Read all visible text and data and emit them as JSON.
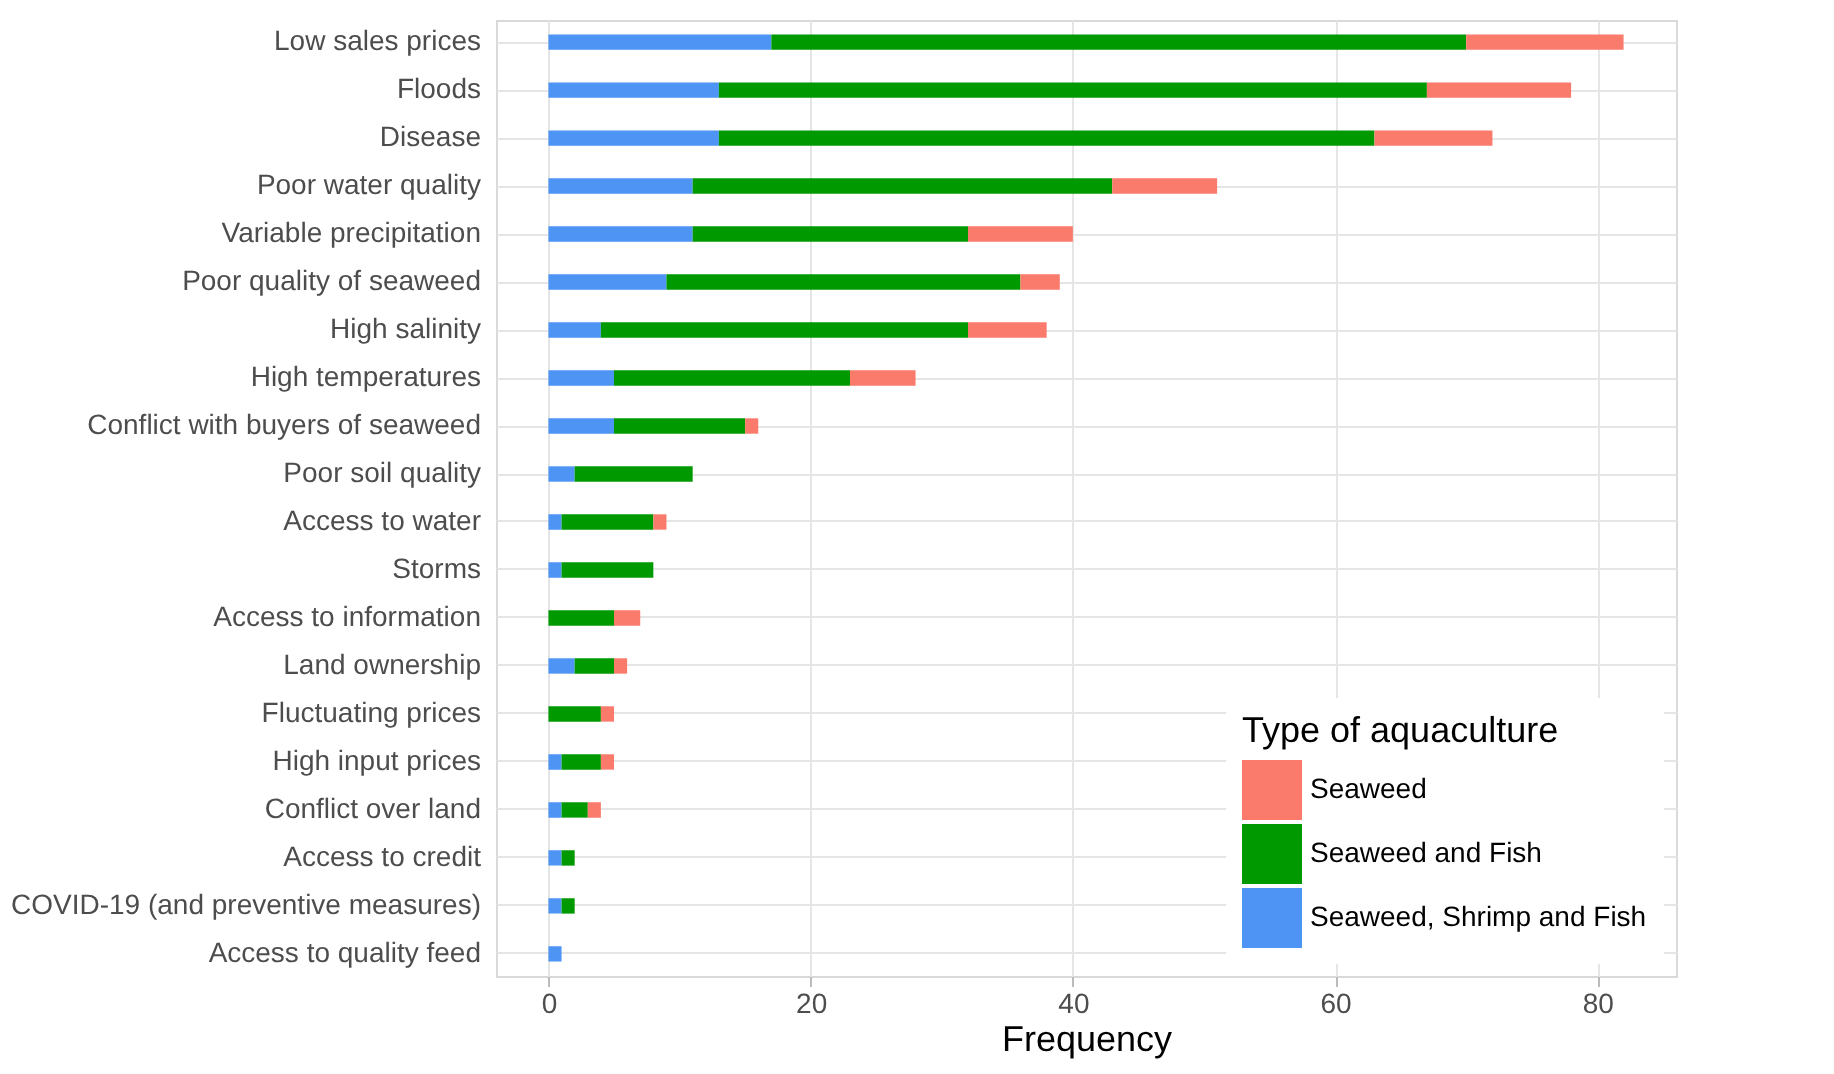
{
  "chart_data": {
    "type": "bar",
    "orientation": "horizontal",
    "stacked": true,
    "xlabel": "Frequency",
    "legend_title": "Type of aquaculture",
    "legend": "bottom right",
    "grid": true,
    "categories": [
      "Low sales prices",
      "Floods",
      "Disease ",
      "Poor water quality",
      "Variable precipitation",
      "Poor quality of seaweed",
      "High salinity",
      "High temperatures",
      "Conflict with buyers of seaweed",
      "Poor soil quality",
      "Access to water",
      "Storms",
      "Access to information",
      "Land ownership",
      "Fluctuating prices",
      "High input prices",
      "Conflict over land",
      "Access to credit",
      "COVID-19 (and preventive measures)",
      "Access to quality feed"
    ],
    "xlim": [
      -4,
      86
    ],
    "xticks": [
      0,
      20,
      40,
      60,
      80
    ],
    "series": [
      {
        "name": "Seaweed, Shrimp and Fish",
        "color": "#4d94f5",
        "values": [
          17,
          13,
          13,
          11,
          11,
          9,
          4,
          5,
          5,
          2,
          1,
          1,
          0,
          2,
          0,
          1,
          1,
          1,
          1,
          1
        ]
      },
      {
        "name": "Seaweed and Fish",
        "color": "#009900",
        "values": [
          53,
          54,
          50,
          32,
          21,
          27,
          28,
          18,
          10,
          9,
          7,
          7,
          5,
          3,
          4,
          3,
          2,
          1,
          1,
          0
        ]
      },
      {
        "name": "Seaweed",
        "color": "#fa7b6c",
        "values": [
          12,
          11,
          9,
          8,
          8,
          3,
          6,
          5,
          1,
          0,
          1,
          0,
          2,
          1,
          1,
          1,
          1,
          0,
          0,
          0
        ]
      }
    ]
  }
}
